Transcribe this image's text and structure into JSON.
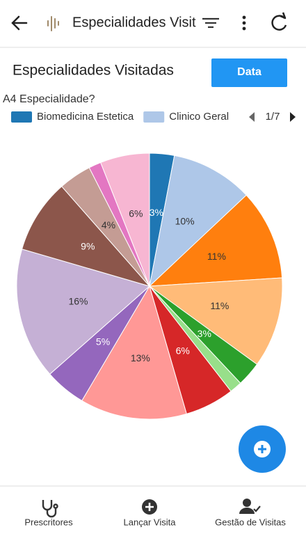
{
  "app_bar": {
    "title": "Especialidades Visit"
  },
  "header": {
    "title": "Especialidades Visitadas",
    "button": "Data"
  },
  "chart_data": {
    "type": "pie",
    "legend_title": "A4 Especialidade?",
    "legend_page": "1/7",
    "categories": [
      "Biomedicina Estetica",
      "Clinico Geral",
      null,
      null,
      null,
      null,
      null,
      null,
      null,
      null,
      null,
      null,
      null,
      null
    ],
    "values": [
      3,
      10,
      11,
      11,
      3,
      1.5,
      6,
      13,
      5,
      16,
      9,
      4,
      1.5,
      6
    ],
    "value_labels": [
      "3%",
      "10%",
      "11%",
      "11%",
      "3%",
      null,
      "6%",
      "13%",
      "5%",
      "16%",
      "9%",
      "4%",
      null,
      "6%"
    ],
    "colors": [
      "#1f77b4",
      "#aec7e8",
      "#ff7f0e",
      "#ffbb78",
      "#2ca02c",
      "#98df8a",
      "#d62728",
      "#ff9896",
      "#9467bd",
      "#c5b0d5",
      "#8c564b",
      "#c49c94",
      "#e377c2",
      "#f7b6d2"
    ]
  },
  "bottom_nav": [
    "Prescritores",
    "Lançar Visita",
    "Gestão de Visitas"
  ]
}
